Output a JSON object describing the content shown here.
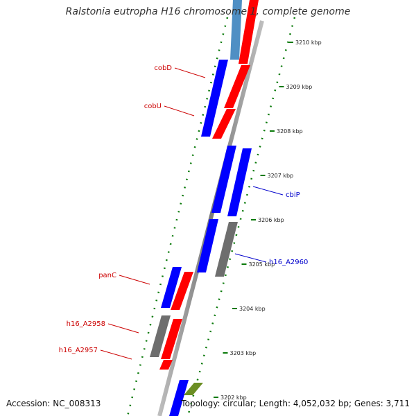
{
  "title": "Ralstonia eutropha H16 chromosome 1, complete genome",
  "footer": {
    "accession": "Accession: NC_008313",
    "topology": "Topology: circular; Length: 4,052,032 bp; Genes: 3,711"
  },
  "ticks": [
    "3210 kbp",
    "3209 kbp",
    "3208 kbp",
    "3207 kbp",
    "3206 kbp",
    "3205 kbp",
    "3204 kbp",
    "3203 kbp",
    "3202 kbp"
  ],
  "gene_labels": [
    "cobD",
    "cobU",
    "cbiP",
    "h16_A2960",
    "panC",
    "h16_A2958",
    "h16_A2957"
  ],
  "colors": {
    "forward_strand": "#0000ff",
    "reverse_strand": "#ff0000",
    "gray_feature": "#6e6e6e",
    "light_blue_feature": "#4f8fc4",
    "green_feature": "#6b8e23",
    "axis": "#888888",
    "tick_marks": "#0a7a0a",
    "label_red": "#cc0000",
    "label_blue": "#0000cc"
  }
}
